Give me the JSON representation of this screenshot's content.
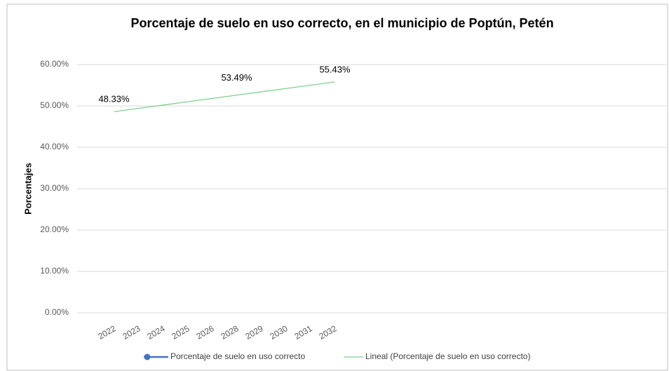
{
  "chart_data": {
    "type": "line",
    "title": "Porcentaje de suelo en uso correcto, en el municipio de Poptún, Petén",
    "y_label": "Porcentajes",
    "categories": [
      null,
      "2022",
      "2023",
      "2024",
      "2025",
      "2026",
      "2028",
      "2029",
      "2030",
      "2031",
      "2032",
      null,
      null,
      null,
      null,
      null,
      null,
      null,
      null,
      null,
      null,
      null,
      null,
      null
    ],
    "series": [
      {
        "name": "Porcentaje de suelo en uso correcto",
        "color": "#4472c4",
        "values": [
          null,
          48.33,
          null,
          null,
          null,
          null,
          53.49,
          null,
          null,
          null,
          55.43,
          null,
          null,
          null,
          null,
          null,
          null,
          null,
          null,
          null,
          null,
          null,
          null,
          null
        ],
        "value_labels": [
          null,
          "48.33%",
          null,
          null,
          null,
          null,
          "53.49%",
          null,
          null,
          null,
          "55.43%",
          null,
          null,
          null,
          null,
          null,
          null,
          null,
          null,
          null,
          null,
          null,
          null,
          null
        ]
      },
      {
        "name": "Lineal (Porcentaje de suelo en uso correcto)",
        "color": "#7fd18e",
        "values": [
          null,
          48.6,
          49.4,
          50.2,
          51.0,
          51.8,
          52.6,
          53.4,
          54.2,
          55.0,
          55.8,
          null,
          null,
          null,
          null,
          null,
          null,
          null,
          null,
          null,
          null,
          null,
          null,
          null
        ]
      }
    ],
    "ylim": [
      0,
      60
    ],
    "yticks": [
      {
        "value": 0,
        "label": "0.00%"
      },
      {
        "value": 10,
        "label": "10.00%"
      },
      {
        "value": 20,
        "label": "20.00%"
      },
      {
        "value": 30,
        "label": "30.00%"
      },
      {
        "value": 40,
        "label": "40.00%"
      },
      {
        "value": 50,
        "label": "50.00%"
      },
      {
        "value": 60,
        "label": "60.00%"
      }
    ],
    "grid": true,
    "legend": "bottom"
  }
}
